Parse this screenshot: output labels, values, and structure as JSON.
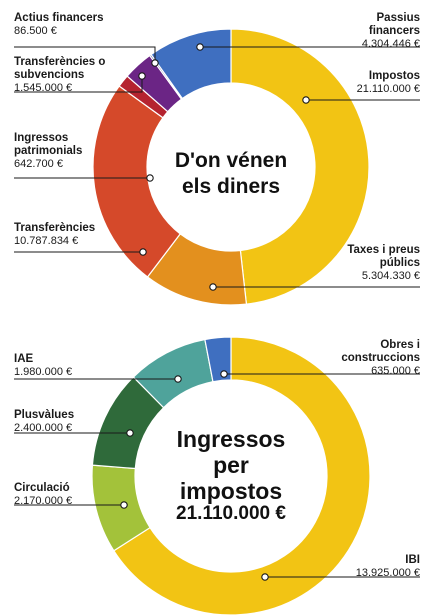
{
  "chart_data": [
    {
      "type": "pie",
      "title": "D'on vénen els diners",
      "title_lines": [
        "D'on vénen",
        "els diners"
      ],
      "slices": [
        {
          "name": "Impostos",
          "value": 21110000,
          "value_label": "21.110.000 €",
          "color": "#f2c414"
        },
        {
          "name": "Taxes i preus públics",
          "name_lines": [
            "Taxes i preus",
            "públics"
          ],
          "value": 5304330,
          "value_label": "5.304.330 €",
          "color": "#e3901e"
        },
        {
          "name": "Transferències",
          "value": 10787834,
          "value_label": "10.787.834 €",
          "color": "#d5492a"
        },
        {
          "name": "Ingressos patrimonials",
          "name_lines": [
            "Ingressos",
            "patrimonials"
          ],
          "value": 642700,
          "value_label": "642.700 €",
          "color": "#b5232f"
        },
        {
          "name": "Transferències o subvencions",
          "name_lines": [
            "Transferències o",
            "subvencions"
          ],
          "value": 1545000,
          "value_label": "1.545.000 €",
          "color": "#6b2585"
        },
        {
          "name": "Actius financers",
          "value": 86500,
          "value_label": "86.500 €",
          "color": "#3a3f8a"
        },
        {
          "name": "Passius financers",
          "name_lines": [
            "Passius",
            "financers"
          ],
          "value": 4304446,
          "value_label": "4.304.446 €",
          "color": "#3f6fc0"
        }
      ]
    },
    {
      "type": "pie",
      "title": "Ingressos per impostos 21.110.000 €",
      "title_lines": [
        "Ingressos",
        "per",
        "impostos",
        "21.110.000 €"
      ],
      "slices": [
        {
          "name": "IBI",
          "value": 13925000,
          "value_label": "13.925.000 €",
          "color": "#f2c414"
        },
        {
          "name": "Circulació",
          "value": 2170000,
          "value_label": "2.170.000 €",
          "color": "#a3c23a"
        },
        {
          "name": "Plusvàlues",
          "value": 2400000,
          "value_label": "2.400.000 €",
          "color": "#2f6a3a"
        },
        {
          "name": "IAE",
          "value": 1980000,
          "value_label": "1.980.000 €",
          "color": "#4fa39b"
        },
        {
          "name": "Obres i construccions",
          "name_lines": [
            "Obres i",
            "construccions"
          ],
          "value": 635000,
          "value_label": "635.000 €",
          "color": "#3f6fc0"
        }
      ]
    }
  ]
}
